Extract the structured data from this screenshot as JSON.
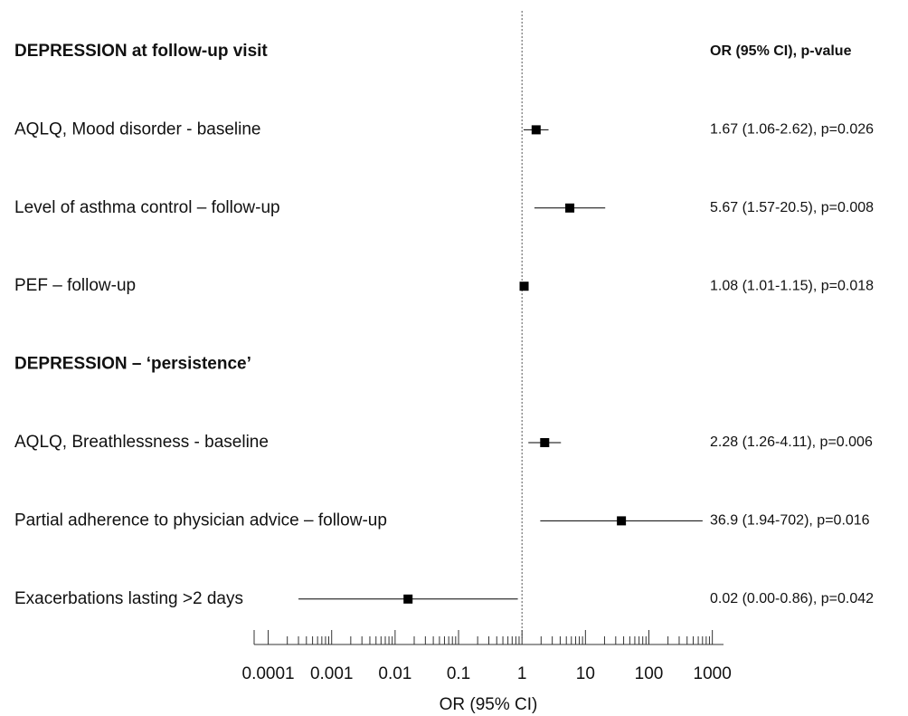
{
  "chart_data": {
    "type": "forest",
    "stats_header": "OR (95% CI), p-value",
    "xlabel": "OR (95% CI)",
    "xscale": "log",
    "xlim": [
      6e-05,
      1500
    ],
    "xticks": [
      0.0001,
      0.001,
      0.01,
      0.1,
      1,
      10,
      100,
      1000
    ],
    "ref_line": 1,
    "color": "#000000",
    "groups": [
      {
        "title": "DEPRESSION at follow-up visit",
        "items": [
          {
            "label": "AQLQ, Mood disorder - baseline",
            "value": 1.67,
            "ci": [
              1.06,
              2.62
            ],
            "value_label": "1.67 (1.06-2.62), p=0.026"
          },
          {
            "label": "Level of asthma control – follow-up",
            "value": 5.67,
            "ci": [
              1.57,
              20.5
            ],
            "value_label": "5.67 (1.57-20.5), p=0.008"
          },
          {
            "label": "PEF – follow-up",
            "value": 1.08,
            "ci": [
              1.01,
              1.15
            ],
            "value_label": "1.08 (1.01-1.15), p=0.018"
          }
        ]
      },
      {
        "title": "DEPRESSION – ‘persistence’",
        "items": [
          {
            "label": "AQLQ, Breathlessness - baseline",
            "value": 2.28,
            "ci": [
              1.26,
              4.11
            ],
            "value_label": "2.28 (1.26-4.11), p=0.006"
          },
          {
            "label": "Partial adherence to physician advice – follow-up",
            "value": 36.9,
            "ci": [
              1.94,
              702
            ],
            "value_label": "36.9 (1.94-702), p=0.016"
          },
          {
            "label": "Exacerbations lasting >2 days",
            "value": 0.016,
            "ci": [
              0.0003,
              0.86
            ],
            "value_label": "0.02 (0.00-0.86), p=0.042"
          }
        ]
      }
    ]
  }
}
